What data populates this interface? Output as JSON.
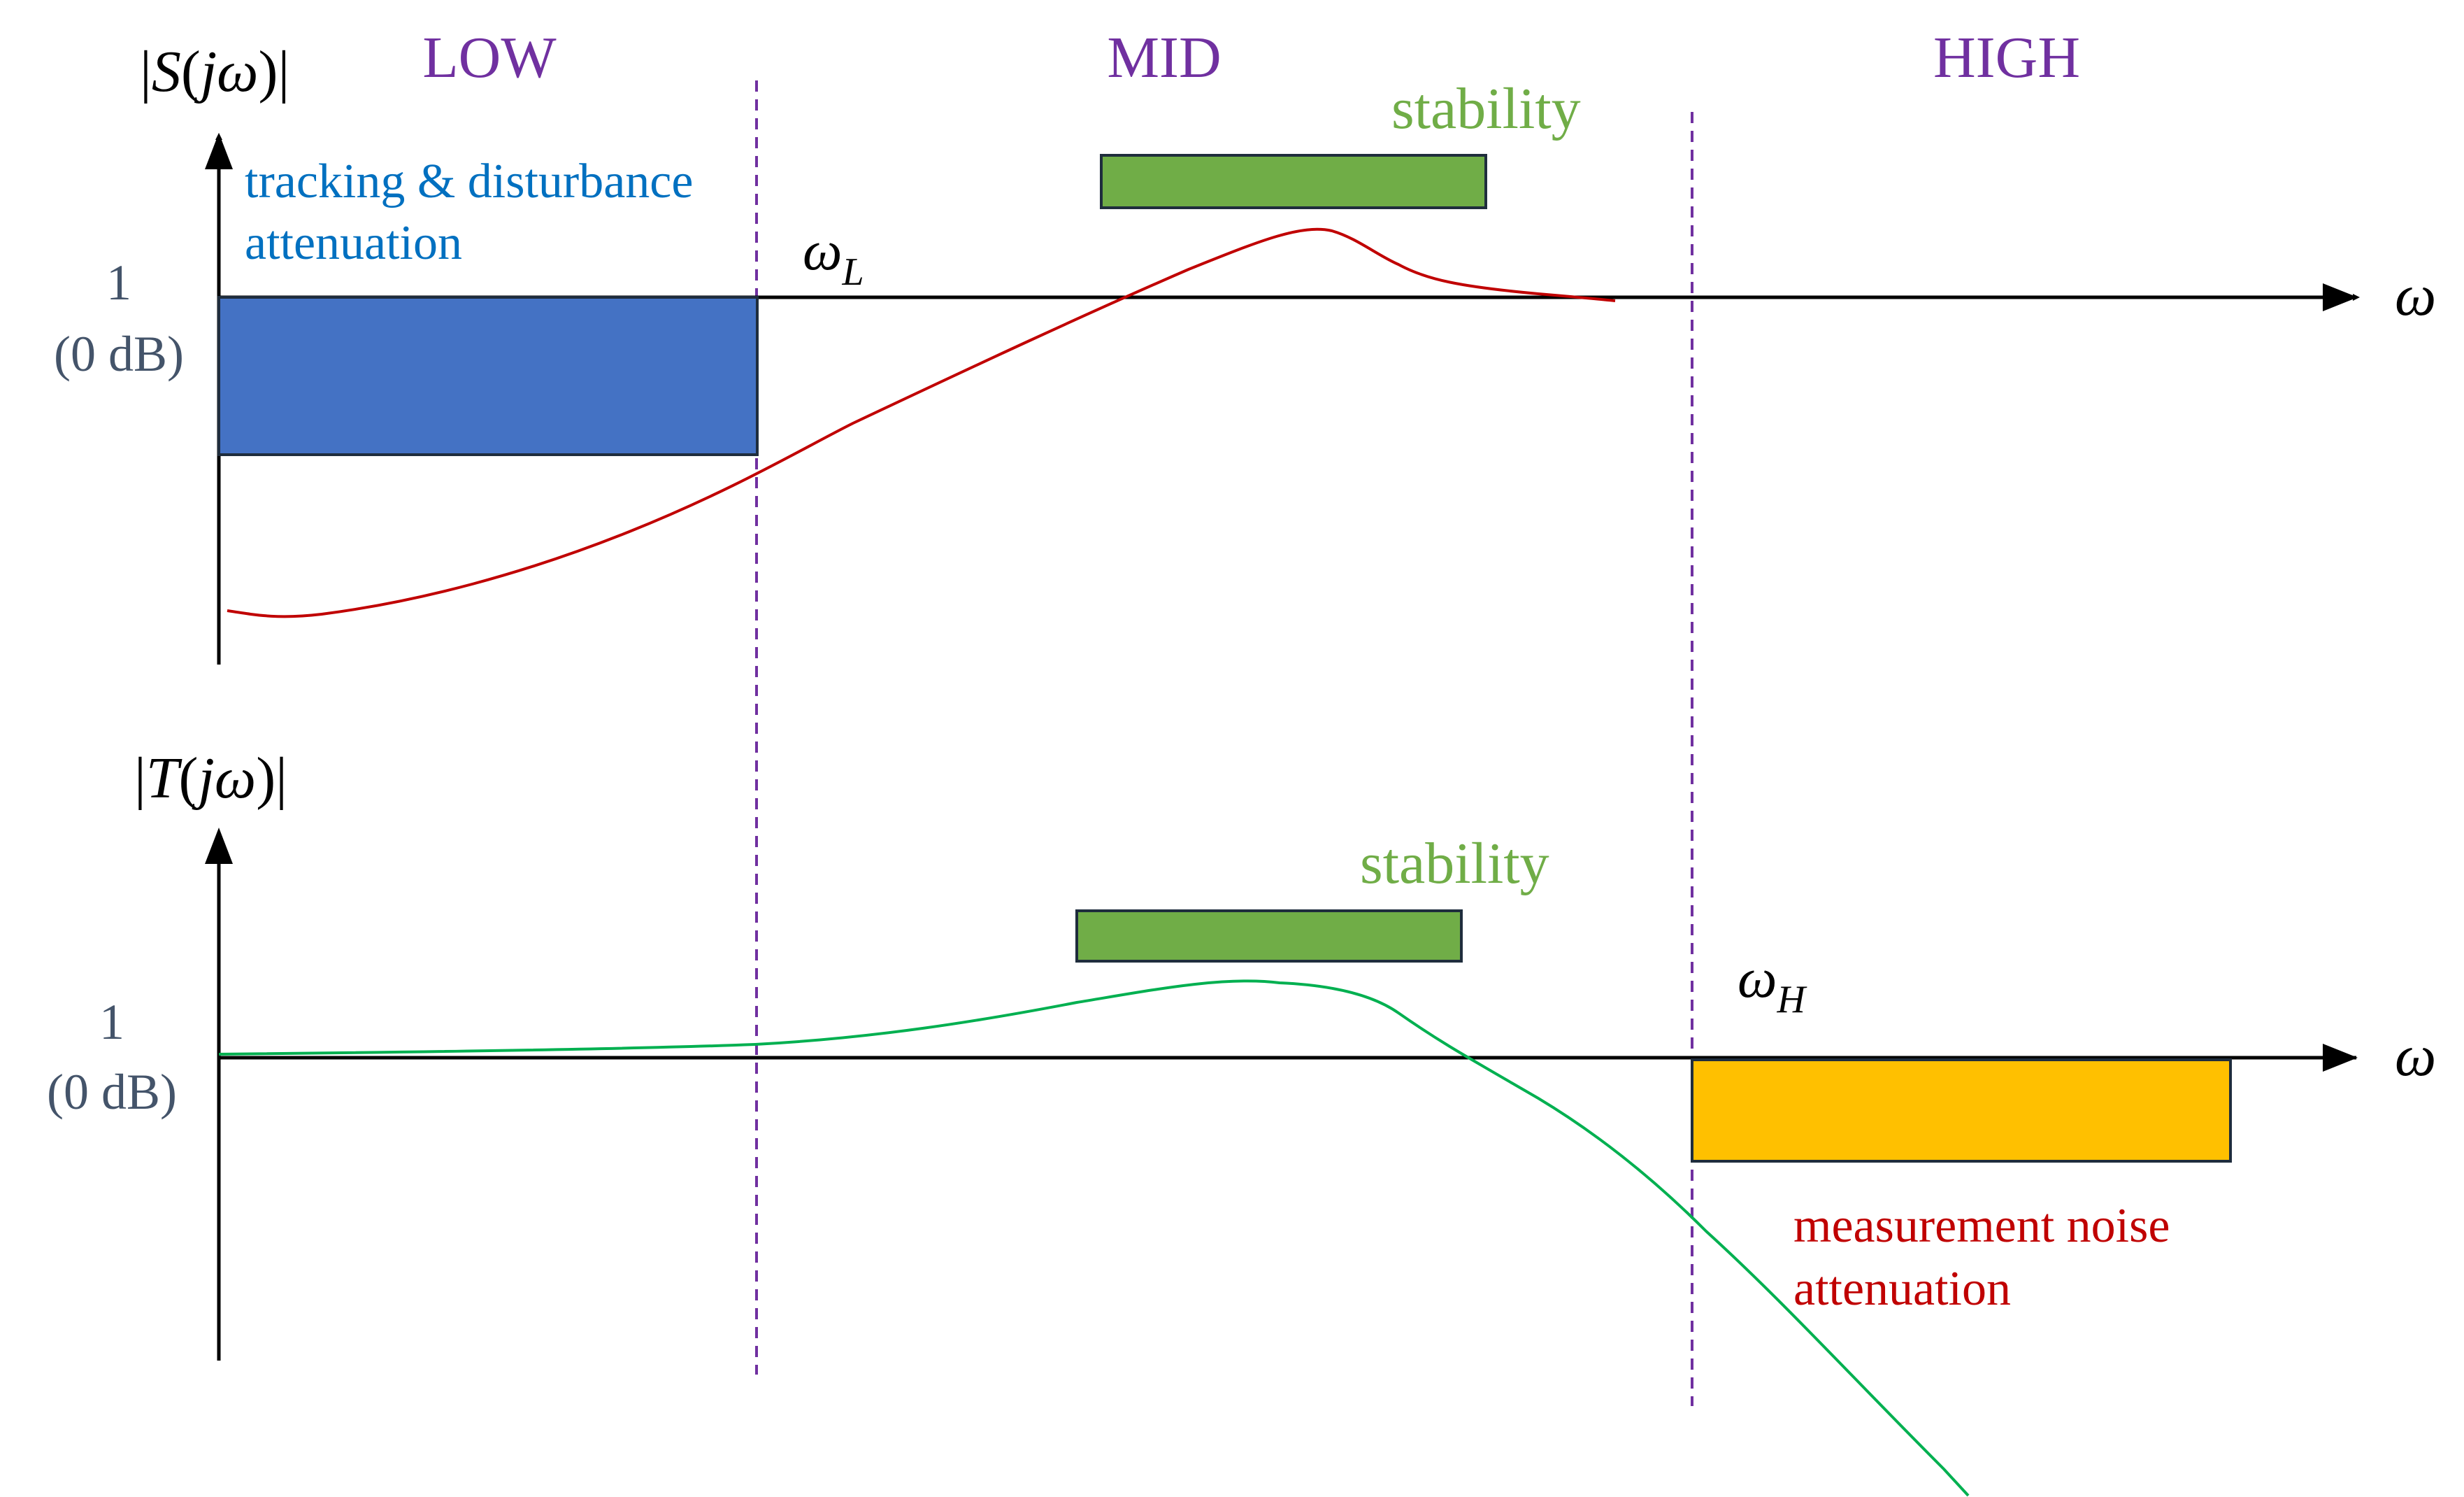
{
  "regions": {
    "low": "LOW",
    "mid": "MID",
    "high": "HIGH"
  },
  "top_plot": {
    "ylabel": "|S(jω)|",
    "tick_1": "1",
    "tick_db": "(0 dB)",
    "xaxis_symbol": "ω",
    "crossover_label": "ω",
    "crossover_sub": "L",
    "spec_low_label_line1": "tracking & disturbance",
    "spec_low_label_line2": "attenuation",
    "spec_mid_label": "stability",
    "curve": "sensitivity S"
  },
  "bottom_plot": {
    "ylabel": "|T(jω)|",
    "tick_1": "1",
    "tick_db": "(0 dB)",
    "xaxis_symbol": "ω",
    "crossover_label": "ω",
    "crossover_sub": "H",
    "spec_mid_label": "stability",
    "spec_high_label_line1": "measurement noise",
    "spec_high_label_line2": "attenuation",
    "curve": "complementary sensitivity T"
  },
  "colors": {
    "region_label": "#7030a0",
    "divider": "#7030a0",
    "axis": "#000000",
    "tick_text": "#44546a",
    "low_box_fill": "#4472c4",
    "low_box_text": "#0070c0",
    "stability_box_fill": "#70ad47",
    "stability_text": "#70ad47",
    "high_box_fill": "#ffc000",
    "high_box_text": "#c00000",
    "s_curve": "#c00000",
    "t_curve": "#00b050",
    "box_stroke": "#1f2d3d"
  }
}
